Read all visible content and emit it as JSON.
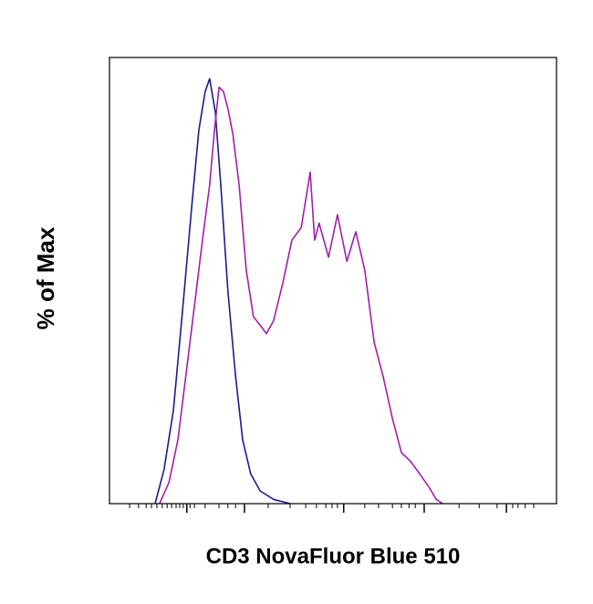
{
  "chart_data": {
    "type": "histogram-overlay",
    "xlabel": "CD3 NovaFluor Blue 510",
    "ylabel": "% of Max",
    "xlim": [
      0,
      100
    ],
    "ylim": [
      0,
      105
    ],
    "xticks": [
      17.3,
      30.2,
      52.4,
      70.4,
      88.8
    ],
    "xminor_ticks": [
      4.5,
      6.5,
      8.2,
      9.4,
      10.6,
      11.8,
      12.9,
      13.9,
      14.9,
      15.7,
      16.5,
      18.0,
      19.0,
      21.4,
      24.5,
      26.5,
      28.2,
      35.5,
      40.4,
      43.9,
      46.3,
      48.4,
      49.8,
      51.0,
      57.1,
      60.2,
      63.3,
      65.3,
      67.0,
      68.4,
      78.2,
      82.7,
      86.7,
      90.2,
      91.4,
      93.0,
      94.9
    ],
    "series": [
      {
        "color": "#1c1c8a",
        "x": [
          10.2,
          12.2,
          14.3,
          16.3,
          18.4,
          20.0,
          21.4,
          22.4,
          23.7,
          24.9,
          26.5,
          28.2,
          29.8,
          31.6,
          33.7,
          36.7,
          40.4
        ],
        "values": [
          0,
          8,
          22,
          45,
          70,
          88,
          97,
          100,
          92,
          75,
          50,
          30,
          15,
          7,
          3,
          1,
          0
        ]
      },
      {
        "color": "#a020a8",
        "x": [
          11.2,
          13.3,
          15.3,
          17.3,
          19.4,
          20.8,
          22.4,
          23.5,
          24.5,
          25.5,
          26.5,
          27.6,
          29.0,
          30.6,
          32.2,
          33.7,
          35.1,
          36.7,
          38.8,
          40.8,
          42.9,
          44.9,
          45.9,
          46.9,
          49.0,
          51.0,
          53.1,
          55.1,
          57.1,
          59.2,
          61.2,
          63.3,
          65.3,
          67.3,
          69.4,
          71.4,
          73.1,
          74.5
        ],
        "values": [
          0,
          5,
          15,
          32,
          50,
          62,
          75,
          88,
          98,
          97,
          93,
          87,
          75,
          55,
          44,
          42,
          40,
          43,
          52,
          62,
          65,
          78,
          62,
          66,
          58,
          68,
          57,
          64,
          55,
          38,
          30,
          20,
          12,
          10,
          7,
          4,
          1,
          0
        ]
      }
    ]
  }
}
